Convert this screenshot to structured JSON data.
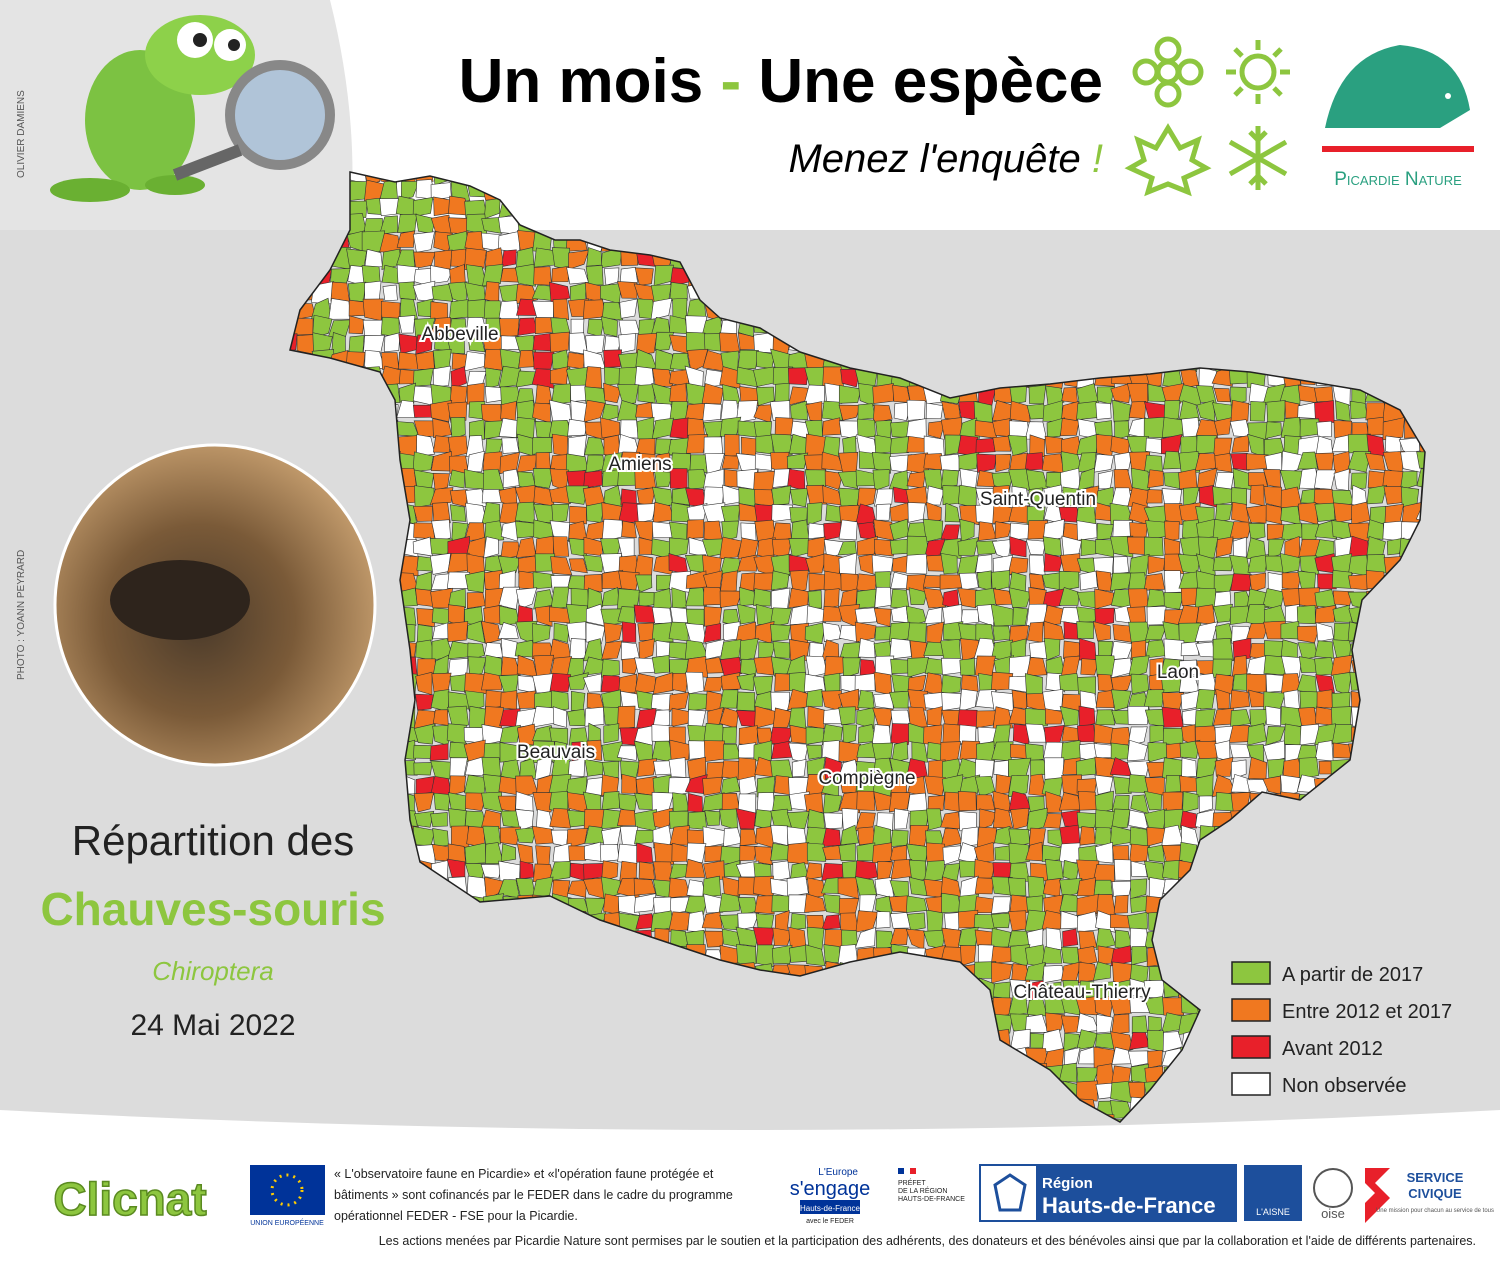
{
  "header": {
    "title_part1": "Un mois",
    "title_dash": "-",
    "title_part2": "Une espèce",
    "subtitle": "Menez l'enquête",
    "subtitle_mark": "!"
  },
  "credits": {
    "illustration": "OLIVIER DAMIENS",
    "photo": "PHOTO : YOANN PEYRARD"
  },
  "logo": {
    "name": "Picardie Nature"
  },
  "map": {
    "cities": [
      {
        "label": "Abbeville"
      },
      {
        "label": "Amiens"
      },
      {
        "label": "Saint-Quentin"
      },
      {
        "label": "Laon"
      },
      {
        "label": "Beauvais"
      },
      {
        "label": "Compiègne"
      },
      {
        "label": "Château-Thierry"
      }
    ],
    "legend": [
      {
        "label": "A partir de 2017",
        "color": "#8dc63f"
      },
      {
        "label": "Entre 2012 et 2017",
        "color": "#f07820"
      },
      {
        "label": "Avant 2012",
        "color": "#e8202a"
      },
      {
        "label": "Non observée",
        "color": "#ffffff"
      }
    ]
  },
  "caption": {
    "line1": "Répartition des",
    "species": "Chauves-souris",
    "latin": "Chiroptera",
    "date": "24 Mai 2022"
  },
  "footer": {
    "clicnat": "Clicnat",
    "eu": "UNION EUROPÉENNE",
    "funding": [
      "« L'observatoire faune en Picardie» et «l'opération faune protégée et",
      "bâtiments » sont cofinancés par le FEDER dans le cadre du programme",
      "opérationnel FEDER - FSE pour la Picardie."
    ],
    "europe_logo": [
      "L'Europe",
      "s'engage",
      "Hauts-de-France",
      "avec le FEDER"
    ],
    "prefet": [
      "PRÉFET",
      "DE LA RÉGION",
      "HAUTS-DE-FRANCE"
    ],
    "region": [
      "Région",
      "Hauts-de-France"
    ],
    "aisne": "L'AISNE",
    "oise": "oise",
    "service_civique": [
      "SERVICE",
      "CIVIQUE",
      "Une mission pour chacun au service de tous"
    ],
    "thanks": "Les actions menées par Picardie Nature sont permises par le soutien et la participation des adhérents, des donateurs et des bénévoles ainsi que par la collaboration et l'aide de différents partenaires."
  }
}
